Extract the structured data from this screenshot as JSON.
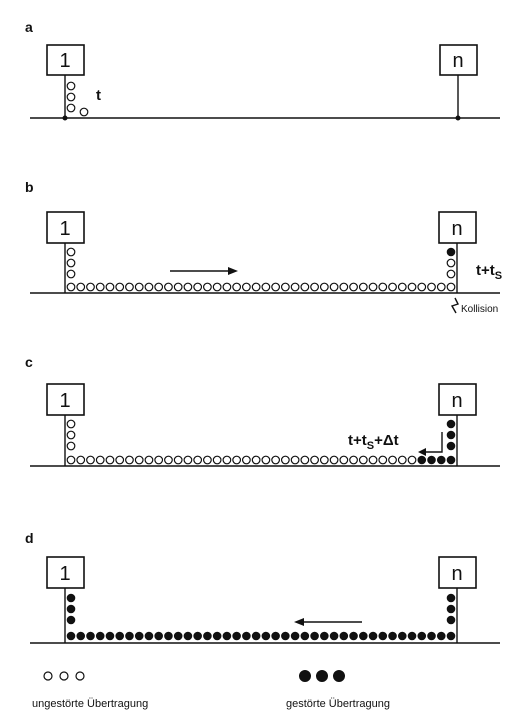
{
  "panels": [
    {
      "letter": "a",
      "station_left": "1",
      "station_right": "n",
      "time_label": "t"
    },
    {
      "letter": "b",
      "station_left": "1",
      "station_right": "n",
      "time_label": "t+t",
      "time_sub": "S",
      "collision_label": "Kollision"
    },
    {
      "letter": "c",
      "station_left": "1",
      "station_right": "n",
      "time_label": "t+t",
      "time_sub": "S",
      "time_suffix": "+Δt"
    },
    {
      "letter": "d",
      "station_left": "1",
      "station_right": "n"
    }
  ],
  "legend": {
    "undisturbed_label": "ungestörte Übertragung",
    "disturbed_label": "gestörte Übertragung"
  }
}
